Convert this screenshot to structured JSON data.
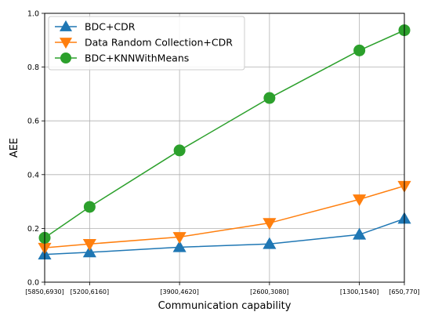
{
  "chart_data": {
    "type": "line",
    "xlabel": "Communication capability",
    "ylabel": "AEE",
    "categories": [
      "[5850,6930]",
      "[5200,6160]",
      "[3900,4620]",
      "[2600,3080]",
      "[1300,1540]",
      "[650,770]"
    ],
    "x": [
      0,
      1,
      3,
      5,
      7,
      8
    ],
    "xlim": [
      0,
      8
    ],
    "ylim": [
      0,
      1.0
    ],
    "yticks": [
      0.0,
      0.2,
      0.4,
      0.6,
      0.8,
      1.0
    ],
    "ytick_labels": [
      "0.0",
      "0.2",
      "0.4",
      "0.6",
      "0.8",
      "1.0"
    ],
    "grid": true,
    "legend_position": "top-left",
    "series": [
      {
        "name": "BDC+CDR",
        "color": "#1f77b4",
        "marker": "triangle-up",
        "values": [
          0.103,
          0.111,
          0.13,
          0.142,
          0.177,
          0.236
        ]
      },
      {
        "name": "Data Random Collection+CDR",
        "color": "#ff7f0e",
        "marker": "triangle-down",
        "values": [
          0.128,
          0.142,
          0.168,
          0.22,
          0.308,
          0.358
        ]
      },
      {
        "name": "BDC+KNNWithMeans",
        "color": "#2ca02c",
        "marker": "circle",
        "values": [
          0.165,
          0.28,
          0.49,
          0.685,
          0.862,
          0.937
        ]
      }
    ]
  }
}
